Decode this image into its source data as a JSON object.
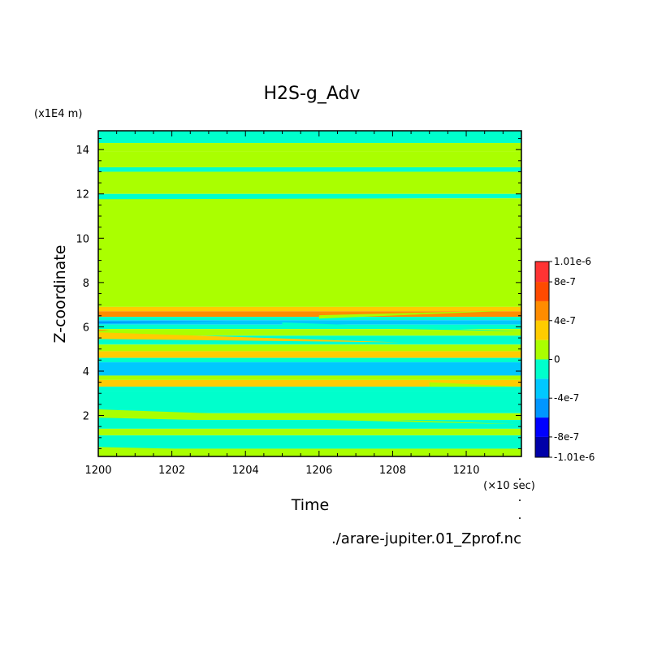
{
  "chart_data": {
    "type": "heatmap",
    "title": "H2S-g_Adv",
    "xlabel": "Time",
    "ylabel": "Z-coordinate",
    "x_units": "(×10 sec)",
    "y_units": "(x1E4 m)",
    "source": "./arare-jupiter.01_Zprof.nc",
    "xlim": [
      1200,
      1211.5
    ],
    "ylim": [
      0.15,
      14.85
    ],
    "x_ticks": [
      "1200",
      "1202",
      "1204",
      "1206",
      "1208",
      "1210"
    ],
    "x_tick_values": [
      1200,
      1202,
      1204,
      1206,
      1208,
      1210
    ],
    "y_ticks": [
      "2",
      "4",
      "6",
      "8",
      "10",
      "12",
      "14"
    ],
    "y_tick_values": [
      2,
      4,
      6,
      8,
      10,
      12,
      14
    ],
    "colorbar": {
      "labels": [
        "1.01e-6",
        "8e-7",
        "4e-7",
        "0",
        "-4e-7",
        "-8e-7",
        "-1.01e-6"
      ],
      "label_values": [
        1.01e-06,
        8e-07,
        4e-07,
        0,
        -4e-07,
        -8e-07,
        -1.01e-06
      ],
      "levels": [
        -1.01e-06,
        -8e-07,
        -6e-07,
        -4e-07,
        -2e-07,
        0,
        2e-07,
        4e-07,
        6e-07,
        8e-07,
        1.01e-06
      ],
      "colors": [
        "#0000a8",
        "#0000ff",
        "#0096ff",
        "#00c8ff",
        "#00ffcc",
        "#aaff00",
        "#ffcc00",
        "#ff8c00",
        "#ff4a00",
        "#ff3333"
      ]
    },
    "bands": [
      {
        "z0": 14.3,
        "z1": 14.85,
        "value": -1e-07
      },
      {
        "z0": 13.9,
        "z1": 14.3,
        "value": 1e-07
      },
      {
        "z0": 13.2,
        "z1": 13.9,
        "value": 1e-07
      },
      {
        "z0": 13.0,
        "z1": 13.2,
        "value": -1e-07
      },
      {
        "z0": 12.0,
        "z1": 13.0,
        "value": 1e-07
      },
      {
        "z0": 11.8,
        "z1": 12.0,
        "value": -1e-07
      },
      {
        "z0": 6.9,
        "z1": 11.8,
        "value": 1e-07
      },
      {
        "z0": 6.7,
        "z1": 6.9,
        "value": 3e-07
      },
      {
        "z0": 6.45,
        "z1": 6.7,
        "value": 5e-07
      },
      {
        "z0": 6.3,
        "z1": 6.45,
        "value": -1e-07
      },
      {
        "z0": 6.1,
        "z1": 6.3,
        "value": -3e-07
      },
      {
        "z0": 5.9,
        "z1": 6.1,
        "value": -1e-07
      },
      {
        "z0": 5.6,
        "z1": 5.9,
        "value": 1e-07
      },
      {
        "z0": 5.2,
        "z1": 5.6,
        "value": -1e-07
      },
      {
        "z0": 4.9,
        "z1": 5.2,
        "value": 1e-07
      },
      {
        "z0": 4.6,
        "z1": 4.9,
        "value": 3e-07
      },
      {
        "z0": 4.4,
        "z1": 4.6,
        "value": -1e-07
      },
      {
        "z0": 3.8,
        "z1": 4.4,
        "value": -3e-07
      },
      {
        "z0": 3.6,
        "z1": 3.8,
        "value": 1e-07
      },
      {
        "z0": 3.3,
        "z1": 3.6,
        "value": 3e-07
      },
      {
        "z0": 3.1,
        "z1": 3.3,
        "value": -1e-07
      },
      {
        "z0": 2.1,
        "z1": 3.1,
        "value": -1e-07
      },
      {
        "z0": 1.8,
        "z1": 2.1,
        "value": 1e-07
      },
      {
        "z0": 1.4,
        "z1": 1.8,
        "value": -1e-07
      },
      {
        "z0": 1.1,
        "z1": 1.4,
        "value": 1e-07
      },
      {
        "z0": 0.5,
        "z1": 1.1,
        "value": -1e-07
      },
      {
        "z0": 0.15,
        "z1": 0.5,
        "value": 1e-07
      }
    ],
    "features": [
      {
        "type": "wedge",
        "value": -1e-07,
        "x0": 1200,
        "x1": 1211.5,
        "z_start": 1.8,
        "z_end": 1.45,
        "thickness": 0.2
      },
      {
        "type": "wedge",
        "value": 1e-07,
        "x0": 1200,
        "x1": 1211.5,
        "z_start": 0.45,
        "z_end": 0.15,
        "thickness": 0.25
      },
      {
        "type": "wedge",
        "value": 1e-07,
        "x0": 1200,
        "x1": 1211.5,
        "z_start": 2.15,
        "z_end": 1.6,
        "thickness": 0.25
      },
      {
        "type": "wedge",
        "value": -1e-07,
        "x0": 1200,
        "x1": 1211.5,
        "z_start": 2.9,
        "z_end": 2.3,
        "thickness": 0.2
      },
      {
        "type": "wedge",
        "value": 3e-07,
        "x0": 1200,
        "x1": 1208.2,
        "z_start": 5.6,
        "z_end": 5.3,
        "thickness": 0.3
      },
      {
        "type": "wedge",
        "value": -1e-07,
        "x0": 1205,
        "x1": 1211.5,
        "z_start": 6.1,
        "z_end": 5.8,
        "thickness": 0.2
      },
      {
        "type": "wedge",
        "value": 1e-07,
        "x0": 1206,
        "x1": 1211.5,
        "z_start": 6.45,
        "z_end": 6.75,
        "thickness": 0.15
      },
      {
        "type": "wedge",
        "value": 1e-07,
        "x0": 1209,
        "x1": 1211.5,
        "z_start": 3.4,
        "z_end": 3.3,
        "thickness": 0.2
      },
      {
        "type": "wedge",
        "value": -1e-07,
        "x0": 1200,
        "x1": 1209.3,
        "z_start": 11.8,
        "z_end": 11.8,
        "thickness": 0.08
      },
      {
        "type": "wedge",
        "value": -5e-07,
        "x0": 1200,
        "x1": 1203.5,
        "z_start": 6.2,
        "z_end": 6.25,
        "thickness": 0.08
      },
      {
        "type": "wedge",
        "value": 5e-07,
        "x0": 1200,
        "x1": 1200.3,
        "z_start": 5.85,
        "z_end": 5.85,
        "thickness": 0.06
      }
    ]
  }
}
